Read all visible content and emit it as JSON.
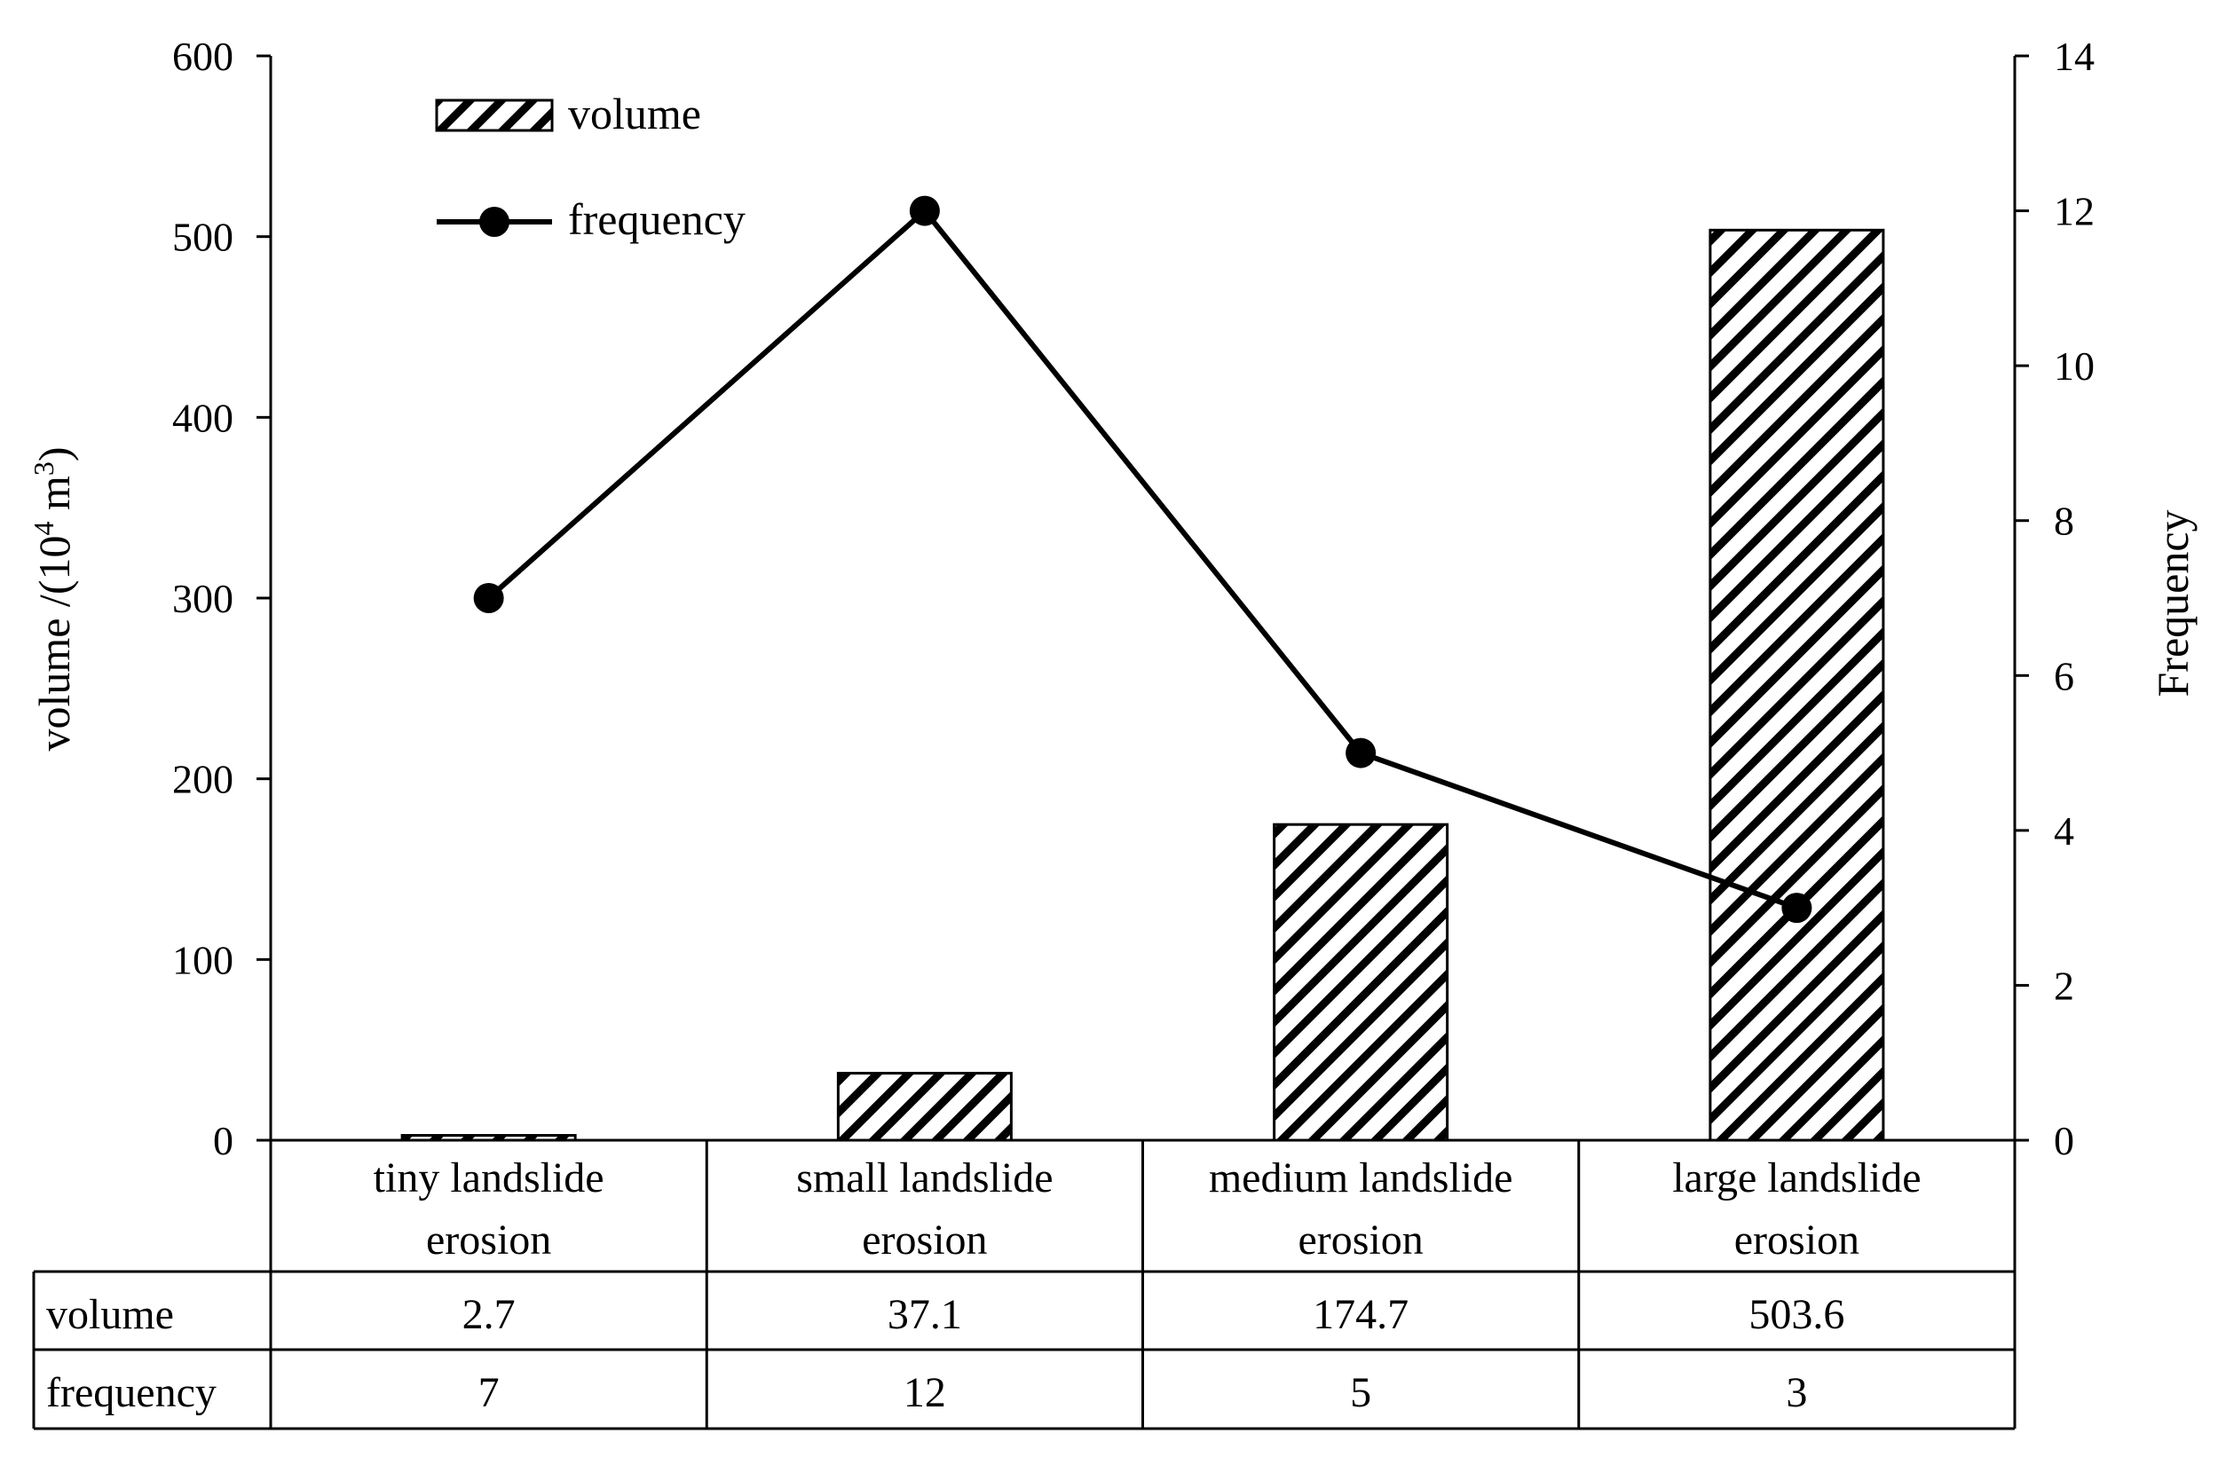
{
  "chart_data": {
    "type": "bar",
    "categories": [
      "tiny landslide erosion",
      "small landslide erosion",
      "medium landslide erosion",
      "large landslide erosion"
    ],
    "category_lines": [
      [
        "tiny landslide",
        "erosion"
      ],
      [
        "small landslide",
        "erosion"
      ],
      [
        "medium landslide",
        "erosion"
      ],
      [
        "large landslide",
        "erosion"
      ]
    ],
    "series": [
      {
        "name": "volume",
        "type": "bar",
        "pattern": "diagonal-hatch",
        "axis": "left",
        "values": [
          2.7,
          37.1,
          174.7,
          503.6
        ]
      },
      {
        "name": "frequency",
        "type": "line",
        "marker": "circle",
        "axis": "right",
        "values": [
          7,
          12,
          5,
          3
        ]
      }
    ],
    "ylabel": "volume /(10⁴ m³)",
    "ylabel_parts": [
      "volume /(10",
      "4",
      " m",
      "3",
      ")"
    ],
    "y2label": "Frequency",
    "ylim": [
      0,
      600
    ],
    "y_ticks": [
      "0",
      "100",
      "200",
      "300",
      "400",
      "500",
      "600"
    ],
    "y2lim": [
      0,
      14
    ],
    "y2_ticks": [
      "0",
      "2",
      "4",
      "6",
      "8",
      "10",
      "12",
      "14"
    ],
    "grid": false,
    "legend_position": "top-left",
    "data_table": {
      "rows": [
        {
          "label": "volume",
          "values": [
            "2.7",
            "37.1",
            "174.7",
            "503.6"
          ]
        },
        {
          "label": "frequency",
          "values": [
            "7",
            "12",
            "5",
            "3"
          ]
        }
      ]
    },
    "colors": {
      "line": "#000000",
      "bar_fill": "#ffffff",
      "hatch": "#000000",
      "background": "#ffffff"
    }
  }
}
